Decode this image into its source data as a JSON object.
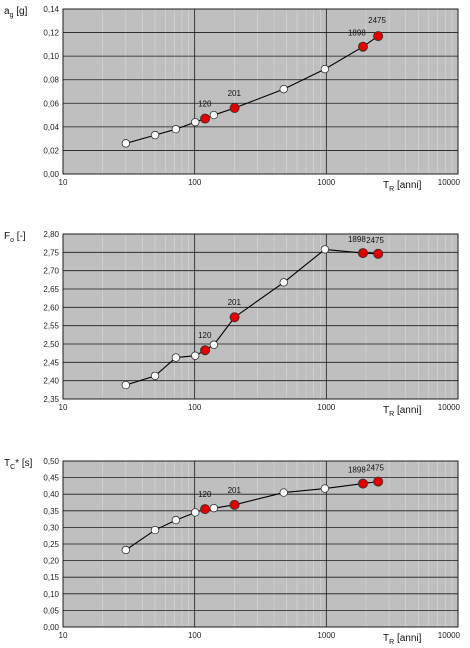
{
  "chart_data": [
    {
      "type": "scatter",
      "ylabel": {
        "main": "a",
        "sub": "g",
        "unit": " [g]"
      },
      "xlabel": {
        "main": "T",
        "sub": "R",
        "unit": " [anni]"
      },
      "xscale": "log",
      "xlim": [
        10,
        10000
      ],
      "ylim": [
        0,
        0.14
      ],
      "xticks": [
        "10",
        "100",
        "1000",
        "10000"
      ],
      "yticks": [
        "0,00",
        "0,02",
        "0,04",
        "0,06",
        "0,08",
        "0,10",
        "0,12",
        "0,14"
      ],
      "grid": true,
      "series": [
        {
          "marker": "open",
          "color": "#ffffff",
          "x": [
            30,
            50,
            72,
            101,
            140,
            475,
            975
          ],
          "y": [
            0.026,
            0.033,
            0.038,
            0.044,
            0.05,
            0.072,
            0.089
          ]
        },
        {
          "marker": "filled",
          "color": "#e00000",
          "x": [
            120,
            201,
            1898,
            2475
          ],
          "y": [
            0.047,
            0.056,
            0.108,
            0.117
          ],
          "labels": [
            "120",
            "201",
            "1898",
            "2475"
          ]
        }
      ]
    },
    {
      "type": "scatter",
      "ylabel": {
        "main": "F",
        "sub": "o",
        "unit": " [-]"
      },
      "xlabel": {
        "main": "T",
        "sub": "R",
        "unit": " [anni]"
      },
      "xscale": "log",
      "xlim": [
        10,
        10000
      ],
      "ylim": [
        2.35,
        2.8
      ],
      "xticks": [
        "10",
        "100",
        "1000",
        "10000"
      ],
      "yticks": [
        "2,35",
        "2,40",
        "2,45",
        "2,50",
        "2,55",
        "2,60",
        "2,65",
        "2,70",
        "2,75",
        "2,80"
      ],
      "grid": true,
      "series": [
        {
          "marker": "open",
          "color": "#ffffff",
          "x": [
            30,
            50,
            72,
            101,
            140,
            475,
            975
          ],
          "y": [
            2.388,
            2.413,
            2.463,
            2.468,
            2.498,
            2.668,
            2.758
          ]
        },
        {
          "marker": "filled",
          "color": "#e00000",
          "x": [
            120,
            201,
            1898,
            2475
          ],
          "y": [
            2.483,
            2.573,
            2.748,
            2.746
          ],
          "labels": [
            "120",
            "201",
            "1898",
            "2475"
          ]
        }
      ]
    },
    {
      "type": "scatter",
      "ylabel": {
        "main": "T",
        "sub": "C",
        "unit": "* [s]"
      },
      "xlabel": {
        "main": "T",
        "sub": "R",
        "unit": " [anni]"
      },
      "xscale": "log",
      "xlim": [
        10,
        10000
      ],
      "ylim": [
        0,
        0.5
      ],
      "xticks": [
        "10",
        "100",
        "1000",
        "10000"
      ],
      "yticks": [
        "0,00",
        "0,05",
        "0,10",
        "0,15",
        "0,20",
        "0,25",
        "0,30",
        "0,35",
        "0,40",
        "0,45",
        "0,50"
      ],
      "grid": true,
      "series": [
        {
          "marker": "open",
          "color": "#ffffff",
          "x": [
            30,
            50,
            72,
            101,
            140,
            475,
            975
          ],
          "y": [
            0.232,
            0.292,
            0.322,
            0.345,
            0.358,
            0.405,
            0.417
          ]
        },
        {
          "marker": "filled",
          "color": "#e00000",
          "x": [
            120,
            201,
            1898,
            2475
          ],
          "y": [
            0.355,
            0.368,
            0.432,
            0.438
          ],
          "labels": [
            "120",
            "201",
            "1898",
            "2475"
          ]
        }
      ]
    }
  ],
  "colors": {
    "plot_bg": "#bfbfbf",
    "grid_major": "#1a1a1a",
    "grid_minor": "#d9d9d9",
    "line": "#000000",
    "point_open": "#ffffff",
    "point_filled": "#e00000"
  }
}
